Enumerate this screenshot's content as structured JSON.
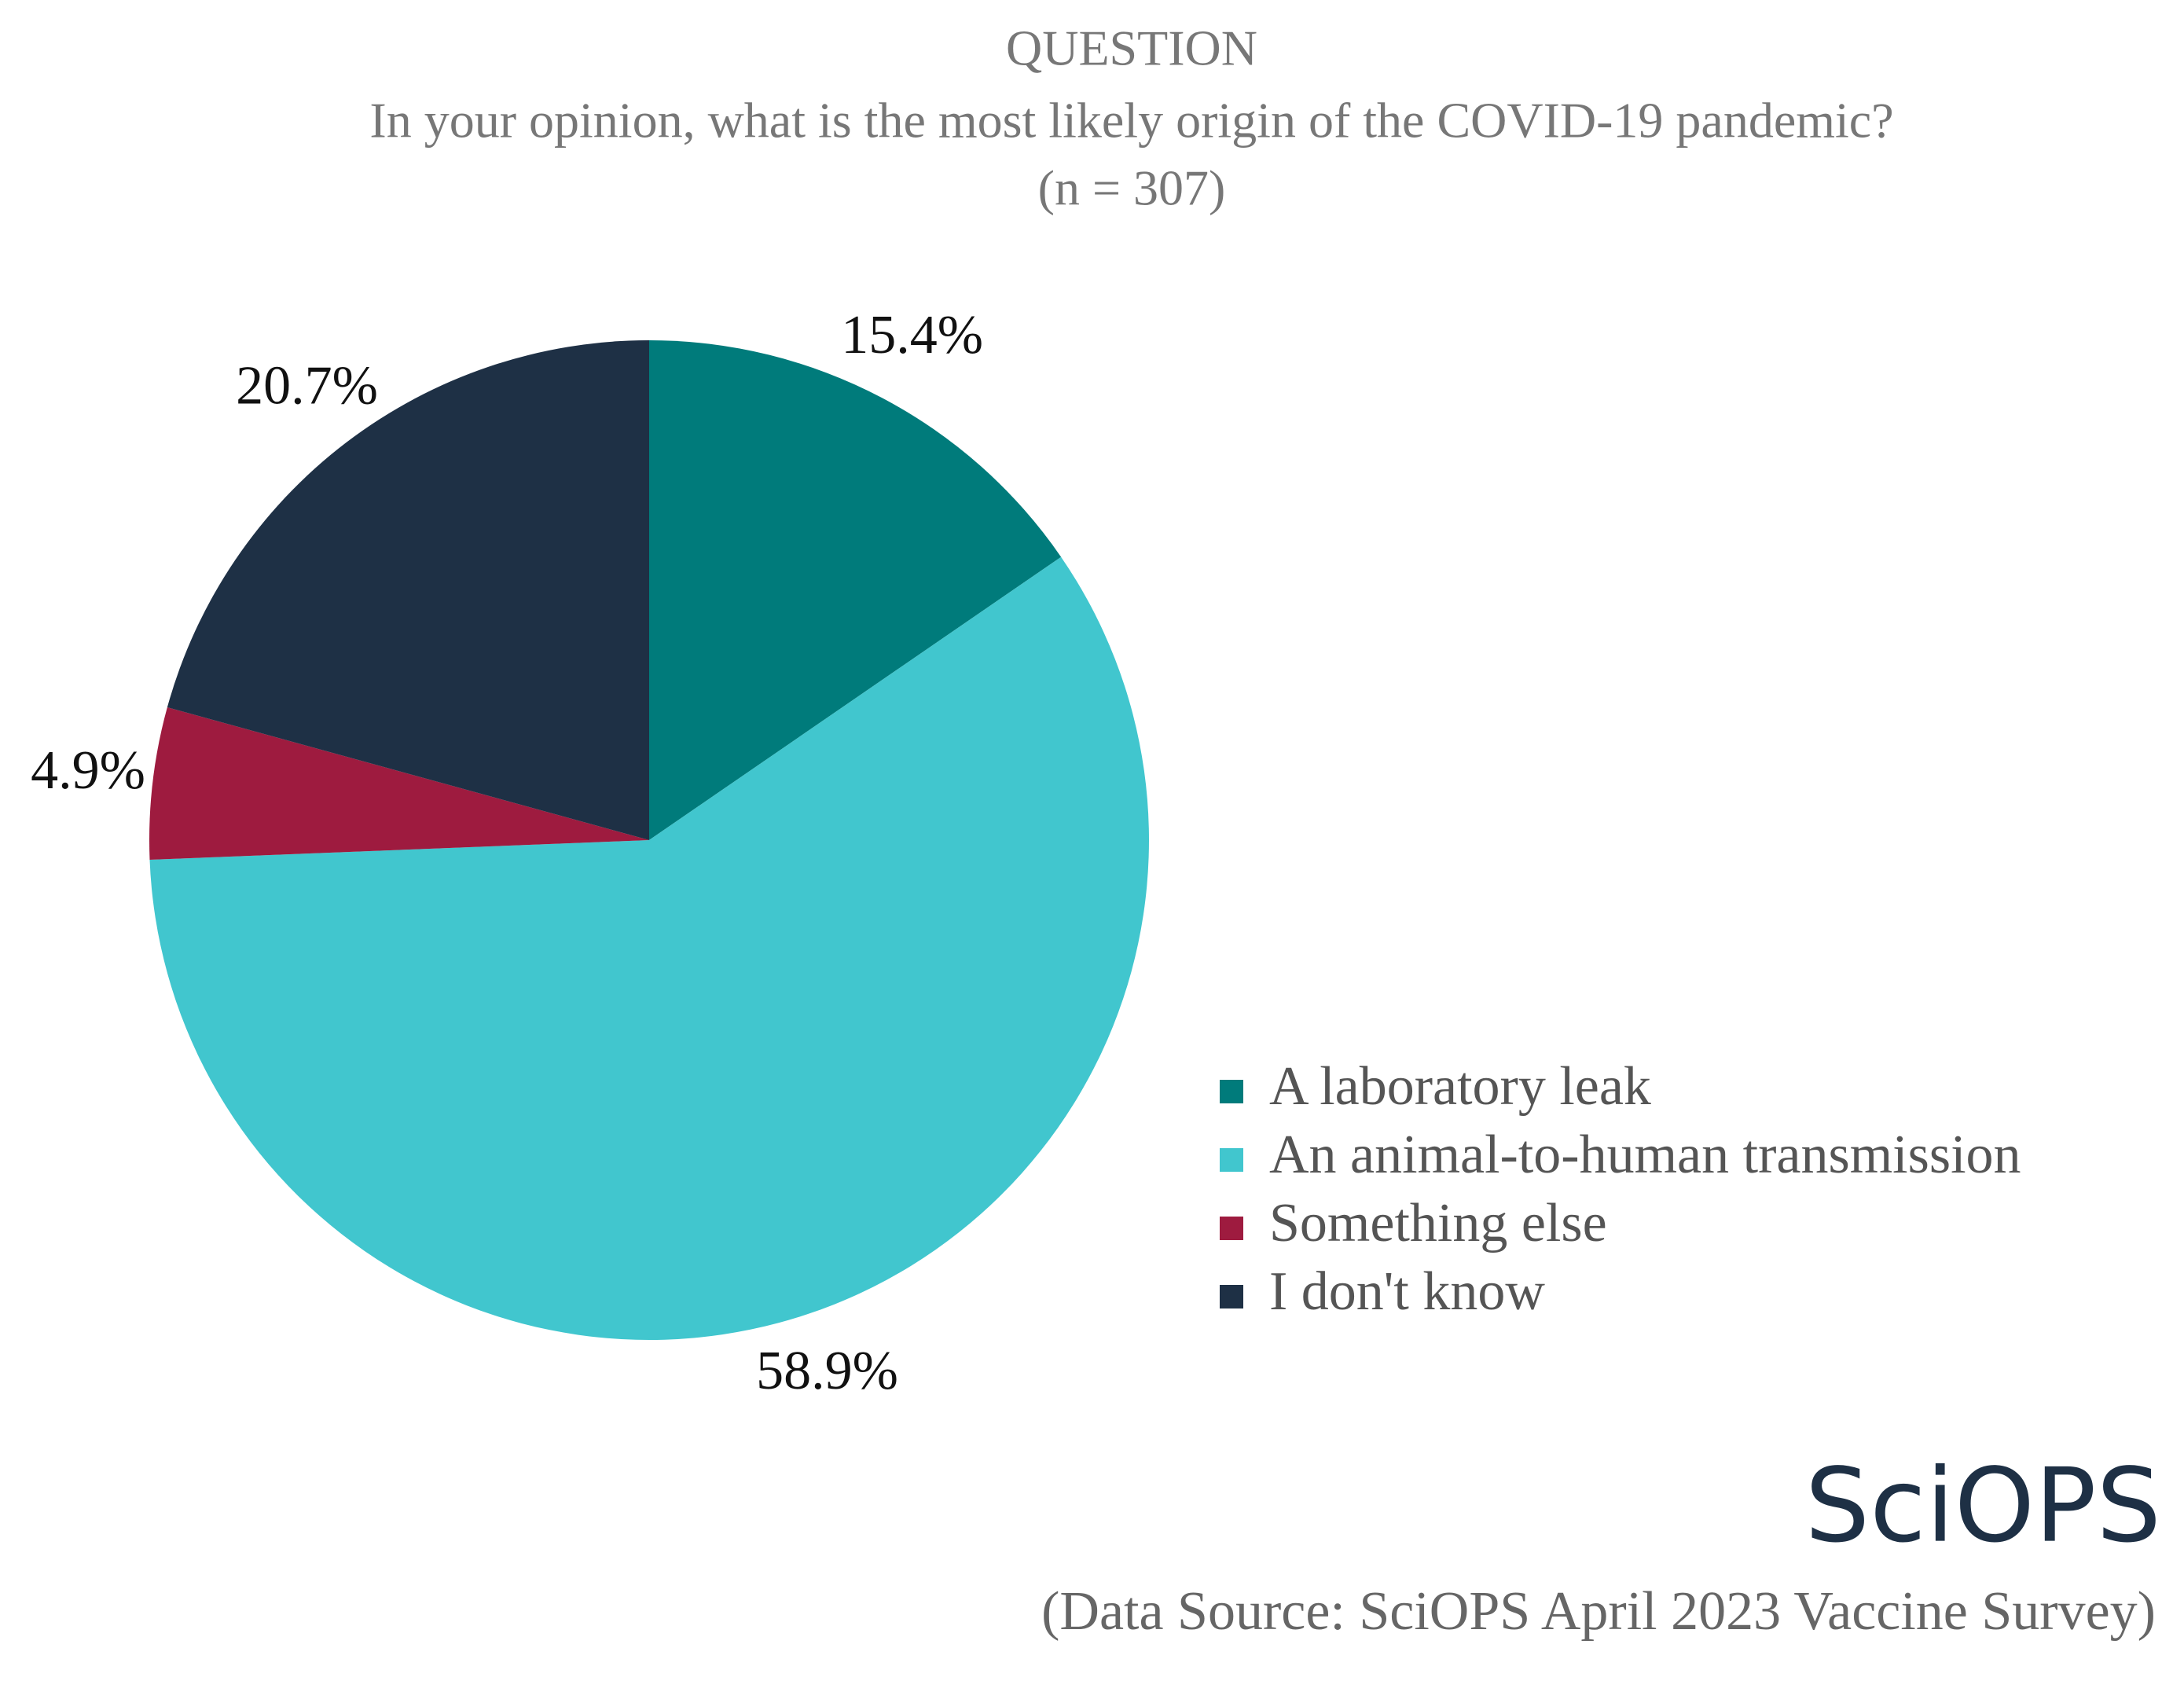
{
  "chart_data": {
    "type": "pie",
    "title": "QUESTION",
    "subtitle": "In your opinion, what is the most likely origin of the COVID-19 pandemic?",
    "sample_size": "(n = 307)",
    "categories": [
      "A laboratory leak",
      "An animal-to-human transmission",
      "Something else",
      "I don't know"
    ],
    "values": [
      15.4,
      58.9,
      4.9,
      20.7
    ],
    "value_labels": [
      "15.4%",
      "58.9%",
      "4.9%",
      "20.7%"
    ],
    "colors": [
      "#007b7b",
      "#41c6ce",
      "#9e1b3f",
      "#1e3045"
    ],
    "legend": "right",
    "logo": "SciOPS",
    "source": "(Data Source: SciOPS April 2023 Vaccine Survey)"
  }
}
